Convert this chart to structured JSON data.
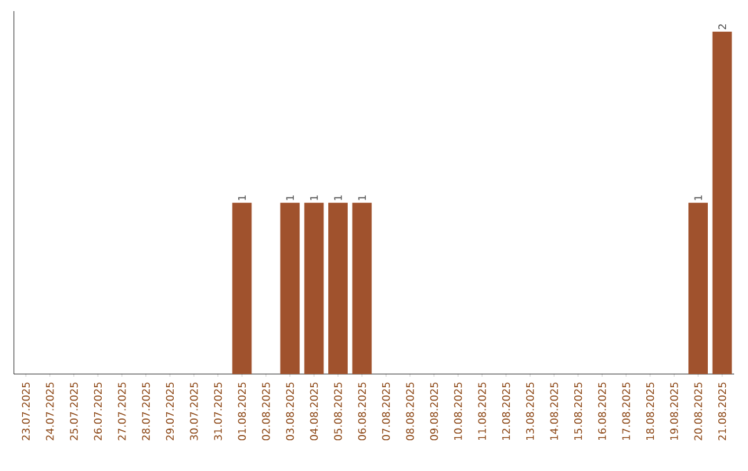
{
  "chart_data": {
    "type": "bar",
    "categories": [
      "23.07.2025",
      "24.07.2025",
      "25.07.2025",
      "26.07.2025",
      "27.07.2025",
      "28.07.2025",
      "29.07.2025",
      "30.07.2025",
      "31.07.2025",
      "01.08.2025",
      "02.08.2025",
      "03.08.2025",
      "04.08.2025",
      "05.08.2025",
      "06.08.2025",
      "07.08.2025",
      "08.08.2025",
      "09.08.2025",
      "10.08.2025",
      "11.08.2025",
      "12.08.2025",
      "13.08.2025",
      "14.08.2025",
      "15.08.2025",
      "16.08.2025",
      "17.08.2025",
      "18.08.2025",
      "19.08.2025",
      "20.08.2025",
      "21.08.2025"
    ],
    "values": [
      0,
      0,
      0,
      0,
      0,
      0,
      0,
      0,
      0,
      1,
      0,
      1,
      1,
      1,
      1,
      0,
      0,
      0,
      0,
      0,
      0,
      0,
      0,
      0,
      0,
      0,
      0,
      0,
      1,
      2
    ],
    "value_labels": [
      null,
      null,
      null,
      null,
      null,
      null,
      null,
      null,
      null,
      "1",
      null,
      "1",
      "1",
      "1",
      "1",
      null,
      null,
      null,
      null,
      null,
      null,
      null,
      null,
      null,
      null,
      null,
      null,
      null,
      "1",
      "2"
    ],
    "color": "#a0522d"
  }
}
